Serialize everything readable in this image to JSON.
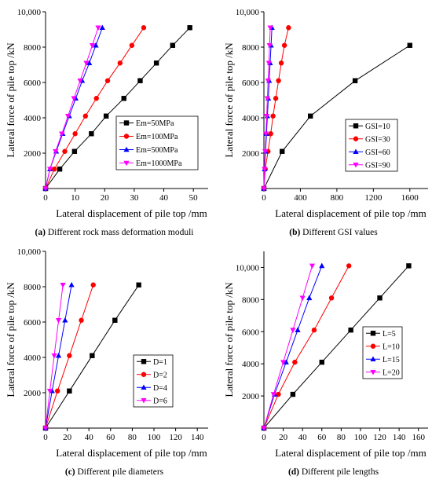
{
  "colors": {
    "black": "#000000",
    "red": "#ff0000",
    "blue": "#0000ff",
    "magenta": "#ff00ff"
  },
  "chart_data": [
    {
      "id": "a",
      "type": "line",
      "caption_label": "(a)",
      "caption_text": " Different rock mass deformation moduli",
      "xlabel": "Lateral displacement of pile top /mm",
      "ylabel": "Lateral force of pile top /kN",
      "xlim": [
        0,
        55
      ],
      "ylim": [
        0,
        10000
      ],
      "xticks": [
        0,
        10,
        20,
        30,
        40,
        50
      ],
      "xtick_labels": [
        "0",
        "10",
        "20",
        "30",
        "40",
        "50"
      ],
      "yticks": [
        2000,
        4000,
        6000,
        8000,
        10000
      ],
      "ytick_labels": [
        "2000",
        "4000",
        "6000",
        "8000",
        "10,000"
      ],
      "legend_position": "right",
      "series": [
        {
          "name": "Em=50MPa",
          "color": "#000000",
          "marker": "square",
          "x": [
            0,
            4.8,
            9.8,
            15.5,
            20.5,
            26.5,
            32,
            37.5,
            43,
            48.8
          ],
          "y": [
            0,
            1100,
            2100,
            3100,
            4100,
            5100,
            6100,
            7100,
            8100,
            9100
          ]
        },
        {
          "name": "Em=100MPa",
          "color": "#ff0000",
          "marker": "circle",
          "x": [
            0,
            3,
            6.5,
            10,
            13.5,
            17.2,
            21,
            25.2,
            29.2,
            33.2
          ],
          "y": [
            0,
            1100,
            2100,
            3100,
            4100,
            5100,
            6100,
            7100,
            8100,
            9100
          ]
        },
        {
          "name": "Em=500MPa",
          "color": "#0000ff",
          "marker": "triangle-up",
          "x": [
            0,
            1.5,
            3.6,
            5.8,
            8,
            10.2,
            12.4,
            14.8,
            17,
            19.2
          ],
          "y": [
            0,
            1100,
            2100,
            3100,
            4100,
            5100,
            6100,
            7100,
            8100,
            9100
          ]
        },
        {
          "name": "Em=1000MPa",
          "color": "#ff00ff",
          "marker": "triangle-down",
          "x": [
            0,
            1.5,
            3.4,
            5.5,
            7.6,
            9.6,
            11.7,
            13.8,
            15.8,
            17.8
          ],
          "y": [
            0,
            1100,
            2100,
            3100,
            4100,
            5100,
            6100,
            7100,
            8100,
            9100
          ]
        }
      ]
    },
    {
      "id": "b",
      "type": "line",
      "caption_label": "(b)",
      "caption_text": " Different GSI values",
      "xlabel": "Lateral displacement of pile top /mm",
      "ylabel": "Lateral force of pile top /kN",
      "xlim": [
        0,
        1800
      ],
      "ylim": [
        0,
        10000
      ],
      "xticks": [
        0,
        400,
        800,
        1200,
        1600
      ],
      "xtick_labels": [
        "0",
        "400",
        "800",
        "1200",
        "1600"
      ],
      "yticks": [
        2000,
        4000,
        6000,
        8000,
        10000
      ],
      "ytick_labels": [
        "2000",
        "4000",
        "6000",
        "8000",
        "10,000"
      ],
      "legend_position": "right",
      "series": [
        {
          "name": "GSI=10",
          "color": "#000000",
          "marker": "square",
          "x": [
            0,
            200,
            510,
            1000,
            1600
          ],
          "y": [
            0,
            2100,
            4100,
            6100,
            8100
          ]
        },
        {
          "name": "GSI=30",
          "color": "#ff0000",
          "marker": "circle",
          "x": [
            0,
            15,
            45,
            75,
            100,
            130,
            160,
            190,
            225,
            270
          ],
          "y": [
            0,
            1100,
            2100,
            3100,
            4100,
            5100,
            6100,
            7100,
            8100,
            9100
          ]
        },
        {
          "name": "GSI=60",
          "color": "#0000ff",
          "marker": "triangle-up",
          "x": [
            0,
            8,
            18,
            28,
            38,
            48,
            58,
            68,
            78,
            88
          ],
          "y": [
            0,
            1100,
            2100,
            3100,
            4100,
            5100,
            6100,
            7100,
            8100,
            9100
          ]
        },
        {
          "name": "GSI=90",
          "color": "#ff00ff",
          "marker": "triangle-down",
          "x": [
            0,
            6,
            14,
            22,
            30,
            38,
            46,
            54,
            62,
            70
          ],
          "y": [
            0,
            1100,
            2100,
            3100,
            4100,
            5100,
            6100,
            7100,
            8100,
            9100
          ]
        }
      ]
    },
    {
      "id": "c",
      "type": "line",
      "caption_label": "(c)",
      "caption_text": " Different pile diameters",
      "xlabel": "Lateral displacement of pile top /mm",
      "ylabel": "Lateral force of pile top /kN",
      "xlim": [
        0,
        150
      ],
      "ylim": [
        0,
        10000
      ],
      "xticks": [
        0,
        20,
        40,
        60,
        80,
        100,
        120,
        140
      ],
      "xtick_labels": [
        "0",
        "20",
        "40",
        "60",
        "80",
        "100",
        "120",
        "140"
      ],
      "yticks": [
        2000,
        4000,
        6000,
        8000,
        10000
      ],
      "ytick_labels": [
        "2000",
        "4000",
        "6000",
        "8000",
        "10,000"
      ],
      "legend_position": "right",
      "series": [
        {
          "name": "D=1",
          "color": "#000000",
          "marker": "square",
          "x": [
            0,
            22,
            43,
            64,
            86
          ],
          "y": [
            0,
            2100,
            4100,
            6100,
            8100
          ]
        },
        {
          "name": "D=2",
          "color": "#ff0000",
          "marker": "circle",
          "x": [
            0,
            11,
            22,
            33,
            44
          ],
          "y": [
            0,
            2100,
            4100,
            6100,
            8100
          ]
        },
        {
          "name": "D=4",
          "color": "#0000ff",
          "marker": "triangle-up",
          "x": [
            0,
            6,
            12,
            18,
            24
          ],
          "y": [
            0,
            2100,
            4100,
            6100,
            8100
          ]
        },
        {
          "name": "D=6",
          "color": "#ff00ff",
          "marker": "triangle-down",
          "x": [
            0,
            4,
            8,
            12,
            16
          ],
          "y": [
            0,
            2100,
            4100,
            6100,
            8100
          ]
        }
      ]
    },
    {
      "id": "d",
      "type": "line",
      "caption_label": "(d)",
      "caption_text": " Different pile lengths",
      "xlabel": "Lateral displacement of pile top /mm",
      "ylabel": "Lateral force of pile top /kN",
      "xlim": [
        0,
        170
      ],
      "ylim": [
        0,
        11000
      ],
      "xticks": [
        0,
        20,
        40,
        60,
        80,
        100,
        120,
        140,
        160
      ],
      "xtick_labels": [
        "0",
        "20",
        "40",
        "60",
        "80",
        "100",
        "120",
        "140",
        "160"
      ],
      "yticks": [
        2000,
        4000,
        6000,
        8000,
        10000
      ],
      "ytick_labels": [
        "2000",
        "4000",
        "6000",
        "8000",
        "10,000"
      ],
      "legend_position": "right",
      "series": [
        {
          "name": "L=5",
          "color": "#000000",
          "marker": "square",
          "x": [
            0,
            30,
            60,
            90,
            120,
            150
          ],
          "y": [
            0,
            2100,
            4100,
            6100,
            8100,
            10100
          ]
        },
        {
          "name": "L=10",
          "color": "#ff0000",
          "marker": "circle",
          "x": [
            0,
            15,
            32,
            52,
            70,
            88
          ],
          "y": [
            0,
            2100,
            4100,
            6100,
            8100,
            10100
          ]
        },
        {
          "name": "L=15",
          "color": "#0000ff",
          "marker": "triangle-up",
          "x": [
            0,
            11,
            23,
            35,
            47,
            60
          ],
          "y": [
            0,
            2100,
            4100,
            6100,
            8100,
            10100
          ]
        },
        {
          "name": "L=20",
          "color": "#ff00ff",
          "marker": "triangle-down",
          "x": [
            0,
            10,
            20,
            30,
            40,
            50
          ],
          "y": [
            0,
            2100,
            4100,
            6100,
            8100,
            10100
          ]
        }
      ]
    }
  ]
}
